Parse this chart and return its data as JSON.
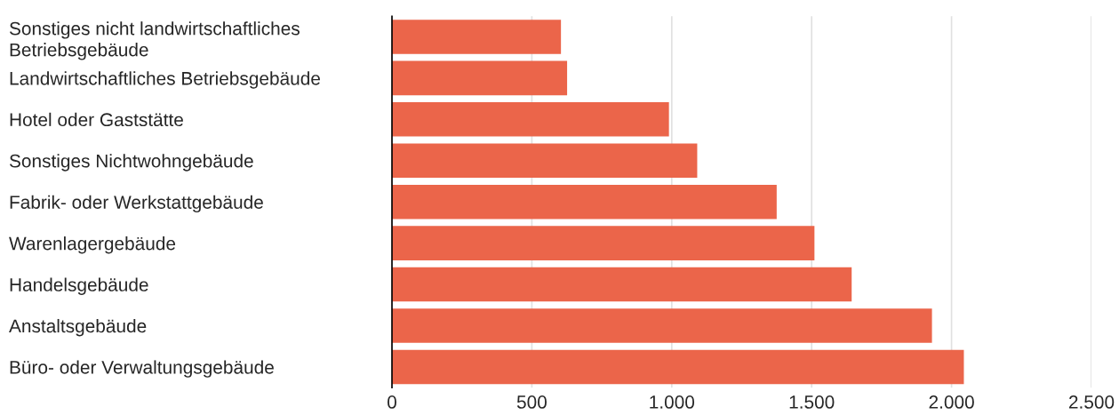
{
  "chart_data": {
    "type": "bar",
    "orientation": "horizontal",
    "categories": [
      "Sonstiges nicht landwirtschaftliches\nBetriebsgebäude",
      "Landwirtschaftliches Betriebsgebäude",
      "Hotel oder Gaststätte",
      "Sonstiges Nichtwohngebäude",
      "Fabrik- oder Werkstattgebäude",
      "Warenlagergebäude",
      "Handelsgebäude",
      "Anstaltsgebäude",
      "Büro- oder Verwaltungsgebäude"
    ],
    "values": [
      604,
      626,
      990,
      1091,
      1375,
      1510,
      1643,
      1930,
      2044
    ],
    "color": "#eb654a",
    "xlim": [
      0,
      2500
    ],
    "xticks": [
      0,
      500,
      {
        "value": 1000,
        "label": "1.000"
      },
      {
        "value": 1500,
        "label": "1.500"
      },
      {
        "value": 2000,
        "label": "2.000"
      },
      {
        "value": 2500,
        "label": "2.500"
      }
    ],
    "grid": "x",
    "legend": false
  }
}
